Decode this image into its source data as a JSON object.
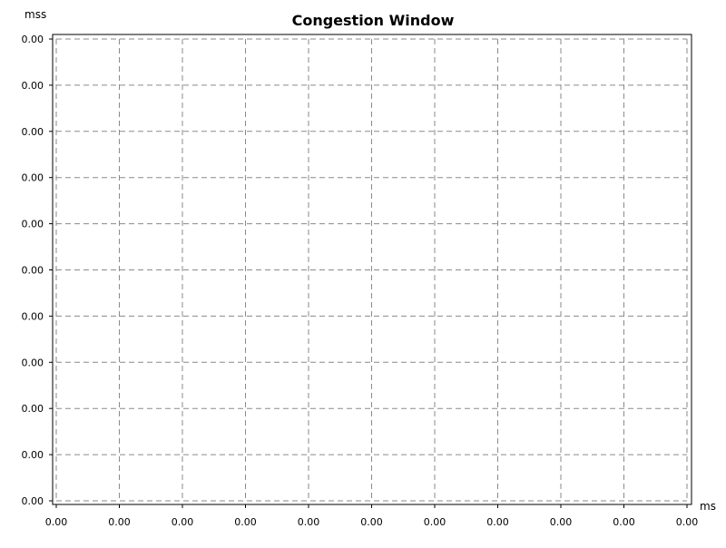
{
  "chart_data": {
    "type": "line",
    "title": "Congestion Window",
    "xlabel": "ms",
    "ylabel": "mss",
    "x_ticks": [
      "0.00",
      "0.00",
      "0.00",
      "0.00",
      "0.00",
      "0.00",
      "0.00",
      "0.00",
      "0.00",
      "0.00",
      "0.00"
    ],
    "y_ticks": [
      "0.00",
      "0.00",
      "0.00",
      "0.00",
      "0.00",
      "0.00",
      "0.00",
      "0.00",
      "0.00",
      "0.00",
      "0.00"
    ],
    "series": [],
    "grid": true,
    "grid_style": "dashed",
    "grid_color": "#8a8a8a",
    "frame_color": "#000000",
    "background": "#ffffff"
  }
}
